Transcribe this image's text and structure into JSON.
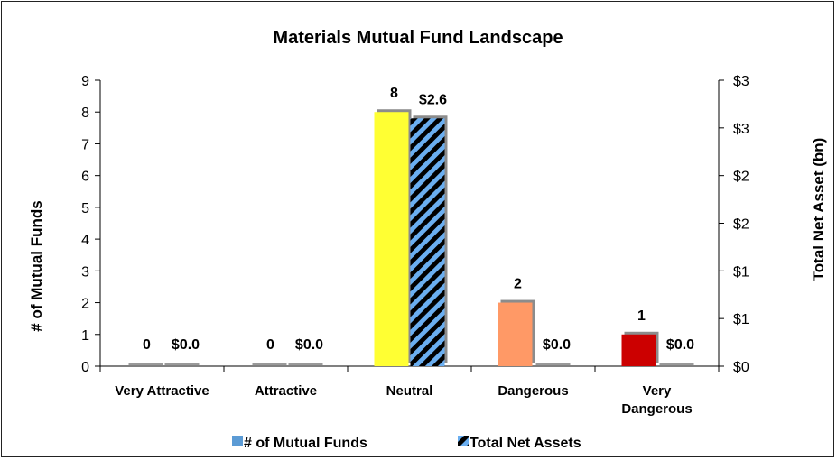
{
  "chart_data": {
    "type": "bar",
    "title": "Materials Mutual Fund Landscape",
    "ylabel": "# of Mutual Funds",
    "y2label": "Total Net Asset (bn)",
    "categories": [
      "Very Attractive",
      "Attractive",
      "Neutral",
      "Dangerous",
      "Very Dangerous"
    ],
    "ylim": [
      0,
      9
    ],
    "y2lim": [
      0,
      3
    ],
    "yticks": [
      "0",
      "1",
      "2",
      "3",
      "4",
      "5",
      "6",
      "7",
      "8",
      "9"
    ],
    "y2ticks": [
      "$0",
      "$1",
      "$1",
      "$2",
      "$2",
      "$3",
      "$3"
    ],
    "series": [
      {
        "name": "# of Mutual Funds",
        "axis": "left",
        "values": [
          0,
          0,
          8,
          2,
          1
        ],
        "labels": [
          "0",
          "0",
          "8",
          "2",
          "1"
        ],
        "bar_colors": [
          "#ffff33",
          "#ffff33",
          "#ffff33",
          "#ff9966",
          "#cc0000"
        ],
        "legend_color": "#5b9bd5"
      },
      {
        "name": "Total Net Assets",
        "axis": "right",
        "values": [
          0.0,
          0.0,
          2.6,
          0.0,
          0.0
        ],
        "labels": [
          "$0.0",
          "$0.0",
          "$2.6",
          "$0.0",
          "$0.0"
        ],
        "pattern": "black-blue-diagonal-stripes"
      }
    ],
    "legend_position": "bottom",
    "grid": false
  }
}
